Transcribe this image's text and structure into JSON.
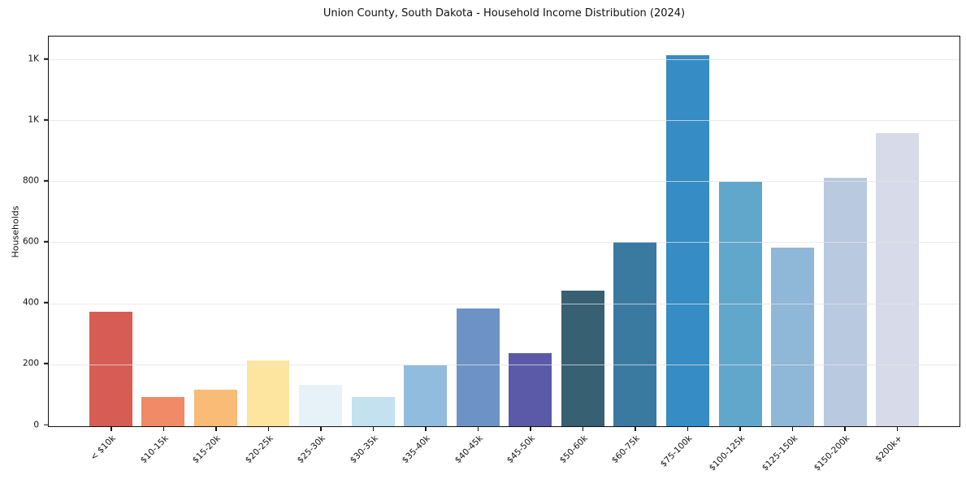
{
  "chart_data": {
    "type": "bar",
    "title": "Union County, South Dakota - Household Income Distribution (2024)",
    "xlabel": "",
    "ylabel": "Households",
    "categories": [
      "< $10k",
      "$10-15k",
      "$15-20k",
      "$20-25k",
      "$25-30k",
      "$30-35k",
      "$35-40k",
      "$40-45k",
      "$45-50k",
      "$50-60k",
      "$60-75k",
      "$75-100k",
      "$100-125k",
      "$125-150k",
      "$150-200k",
      "$200k+"
    ],
    "values": [
      375,
      95,
      120,
      215,
      135,
      95,
      200,
      385,
      240,
      445,
      605,
      1215,
      800,
      585,
      815,
      960
    ],
    "bar_colors": [
      "#d65c54",
      "#f08a67",
      "#fabb77",
      "#fde49f",
      "#e7f2f8",
      "#c3e1ee",
      "#91bcdd",
      "#6d92c5",
      "#5a5aa8",
      "#376073",
      "#3a7aa1",
      "#368cc4",
      "#61a7cc",
      "#8fb7d8",
      "#b9c9e0",
      "#d7dae8"
    ],
    "yticks": [
      {
        "value": 0,
        "label": "0"
      },
      {
        "value": 200,
        "label": "200"
      },
      {
        "value": 400,
        "label": "400"
      },
      {
        "value": 600,
        "label": "600"
      },
      {
        "value": 800,
        "label": "800"
      },
      {
        "value": 1000,
        "label": "1K"
      },
      {
        "value": 1200,
        "label": "1K"
      }
    ],
    "ylim": [
      0,
      1277
    ],
    "grid": "horizontal",
    "legend": "none",
    "colors": {
      "grid": "#e8e8e8",
      "spine": "#111111",
      "text": "#111111",
      "background": "#ffffff"
    }
  }
}
